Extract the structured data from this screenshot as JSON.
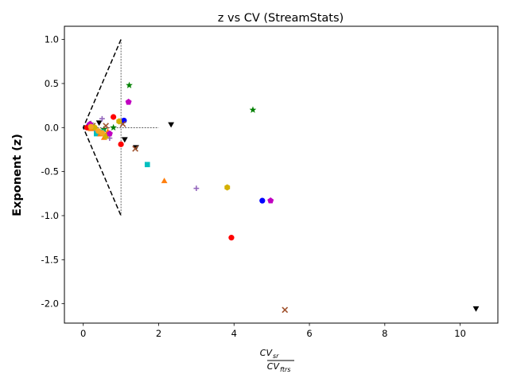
{
  "chart_data": {
    "type": "scatter",
    "title": "z vs CV (StreamStats)",
    "xlabel_num": "CV",
    "xlabel_num_sub": "sr",
    "xlabel_den": "CV",
    "xlabel_den_sub": "ftrs",
    "ylabel": "Exponent (z)",
    "xlim": [
      -0.5,
      11.0
    ],
    "ylim": [
      -2.22,
      1.15
    ],
    "xticks": [
      "0",
      "2",
      "4",
      "6",
      "8",
      "10"
    ],
    "yticks": [
      "1.0",
      "0.5",
      "0.0",
      "-0.5",
      "-1.0",
      "-1.5",
      "-2.0"
    ],
    "xtick_values": [
      0,
      2,
      4,
      6,
      8,
      10
    ],
    "ytick_values": [
      1.0,
      0.5,
      0.0,
      -0.5,
      -1.0,
      -1.5,
      -2.0
    ],
    "guides": {
      "dashed_wedge": [
        [
          1.0,
          1.0
        ],
        [
          0.0,
          0.0
        ],
        [
          1.0,
          -1.0
        ]
      ],
      "dotted_vertical": [
        [
          1.0,
          1.0
        ],
        [
          1.0,
          -1.0
        ]
      ],
      "dotted_horizontal": [
        [
          0.0,
          0.0
        ],
        [
          2.0,
          0.0
        ]
      ]
    },
    "series": [
      {
        "marker": "circle",
        "color": "#0000ff",
        "points": [
          [
            0.15,
            0.02
          ],
          [
            0.25,
            0.0
          ],
          [
            1.08,
            0.08
          ],
          [
            4.75,
            -0.83
          ]
        ]
      },
      {
        "marker": "circle",
        "color": "#ff0000",
        "points": [
          [
            0.1,
            0.0
          ],
          [
            0.8,
            0.12
          ],
          [
            1.0,
            -0.19
          ],
          [
            3.93,
            -1.25
          ]
        ]
      },
      {
        "marker": "star",
        "color": "#008000",
        "points": [
          [
            0.2,
            0.04
          ],
          [
            0.55,
            -0.02
          ],
          [
            0.8,
            0.0
          ],
          [
            1.22,
            0.48
          ],
          [
            4.5,
            0.2
          ]
        ]
      },
      {
        "marker": "triangle-down",
        "color": "#000000",
        "points": [
          [
            0.42,
            0.06
          ],
          [
            1.1,
            -0.13
          ],
          [
            1.4,
            -0.22
          ],
          [
            2.33,
            0.04
          ],
          [
            10.42,
            -2.05
          ]
        ]
      },
      {
        "marker": "x",
        "color": "#a0522d",
        "points": [
          [
            0.25,
            0.02
          ],
          [
            0.6,
            0.02
          ],
          [
            1.05,
            0.04
          ],
          [
            1.38,
            -0.24
          ],
          [
            5.35,
            -2.07
          ]
        ]
      },
      {
        "marker": "plus",
        "color": "#9467bd",
        "points": [
          [
            0.3,
            -0.03
          ],
          [
            0.5,
            0.1
          ],
          [
            0.7,
            -0.12
          ],
          [
            3.0,
            -0.69
          ]
        ]
      },
      {
        "marker": "square",
        "color": "#00bfbf",
        "points": [
          [
            0.35,
            -0.07
          ],
          [
            0.5,
            -0.05
          ],
          [
            1.7,
            -0.42
          ]
        ]
      },
      {
        "marker": "triangle-up",
        "color": "#ff7f0e",
        "points": [
          [
            0.2,
            -0.02
          ],
          [
            0.45,
            -0.08
          ],
          [
            0.55,
            -0.12
          ],
          [
            0.65,
            -0.05
          ],
          [
            2.15,
            -0.61
          ]
        ]
      },
      {
        "marker": "hexagon",
        "color": "#d4b000",
        "points": [
          [
            0.3,
            0.0
          ],
          [
            0.6,
            -0.1
          ],
          [
            0.95,
            0.07
          ],
          [
            3.82,
            -0.68
          ]
        ]
      },
      {
        "marker": "pentagon",
        "color": "#c000c0",
        "points": [
          [
            0.18,
            0.04
          ],
          [
            0.7,
            -0.07
          ],
          [
            1.2,
            0.29
          ],
          [
            4.97,
            -0.83
          ]
        ]
      },
      {
        "marker": "circle",
        "color": "#f5a623",
        "points": [
          [
            0.2,
            0.01
          ],
          [
            0.4,
            -0.04
          ],
          [
            0.5,
            -0.06
          ]
        ]
      }
    ]
  }
}
